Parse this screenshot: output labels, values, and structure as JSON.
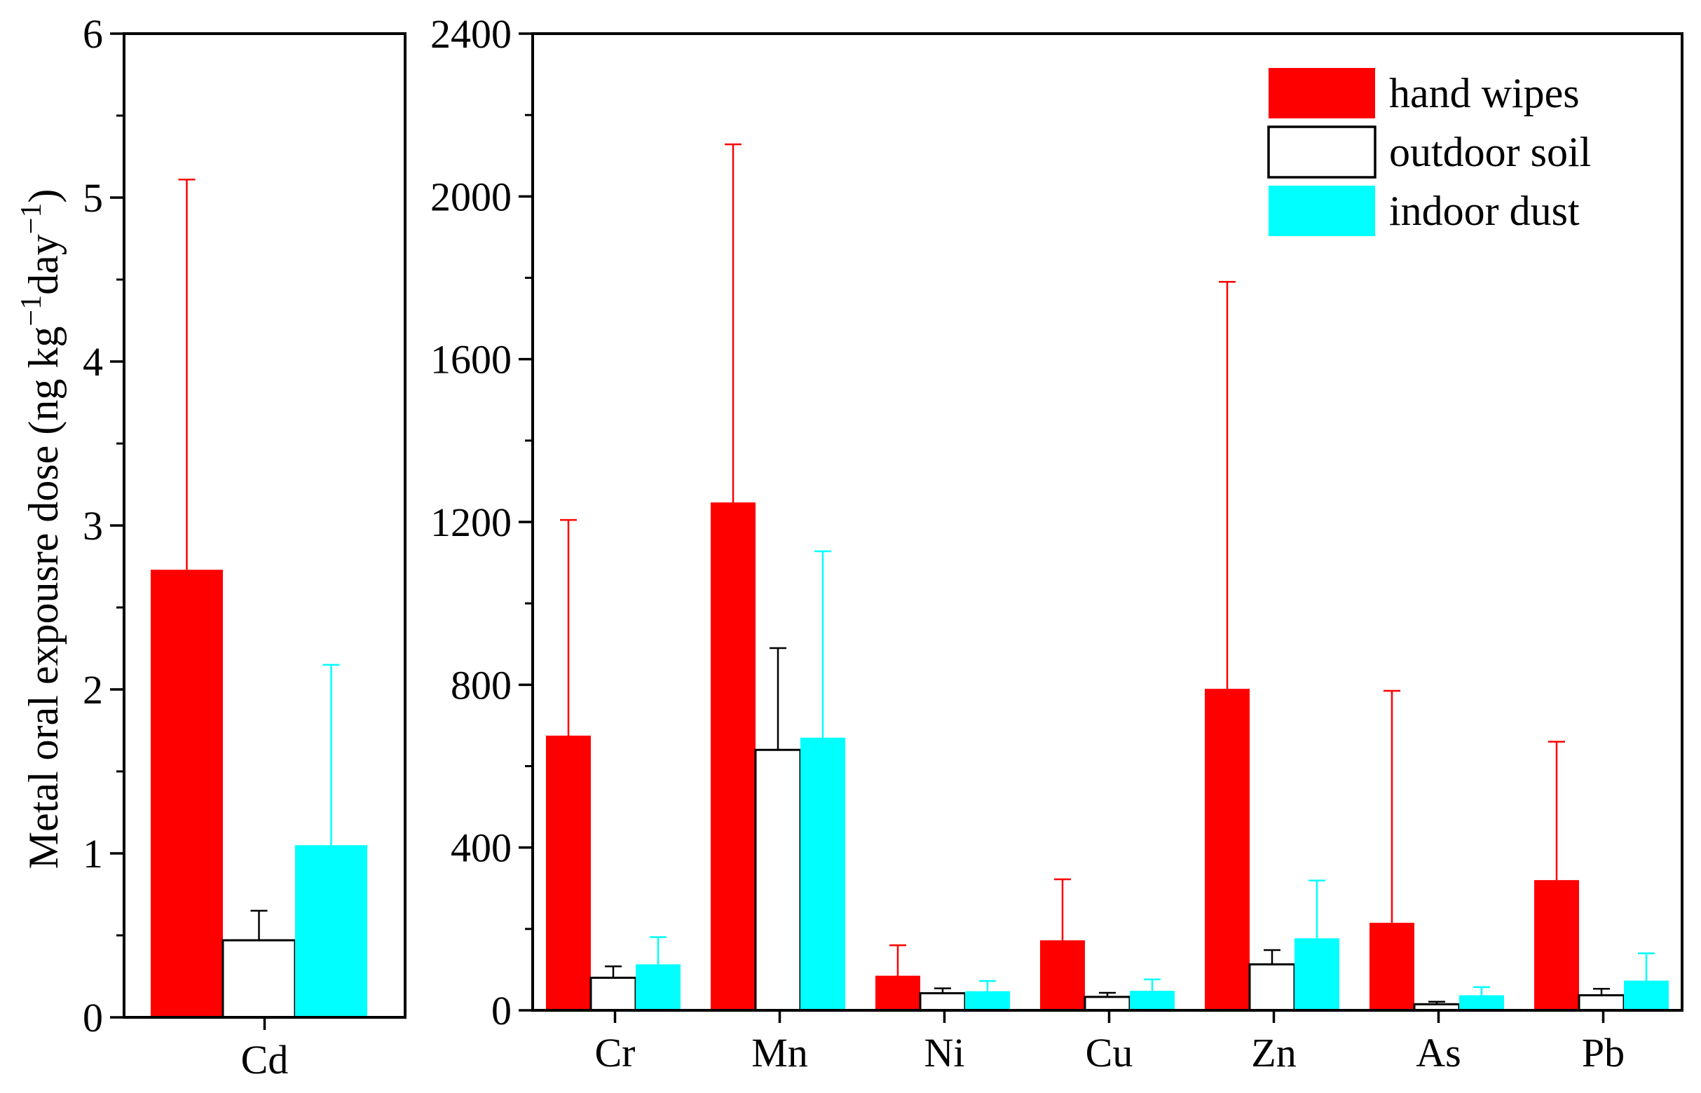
{
  "chart_data": [
    {
      "type": "bar",
      "panel": "left",
      "categories": [
        "Cd"
      ],
      "series": [
        {
          "name": "hand wipes",
          "values": [
            2.73
          ],
          "errors": [
            2.38
          ]
        },
        {
          "name": "outdoor soil",
          "values": [
            0.47
          ],
          "errors": [
            0.18
          ]
        },
        {
          "name": "indoor dust",
          "values": [
            1.05
          ],
          "errors": [
            1.1
          ]
        }
      ],
      "ylim": [
        0,
        6
      ],
      "yticks": [
        "0",
        "1",
        "2",
        "3",
        "4",
        "5",
        "6"
      ],
      "ylabel_parts": [
        "Metal oral expousre dose (ng kg",
        "−1",
        "day",
        "−1",
        ")"
      ]
    },
    {
      "type": "bar",
      "panel": "right",
      "categories": [
        "Cr",
        "Mn",
        "Ni",
        "Cu",
        "Zn",
        "As",
        "Pb"
      ],
      "series": [
        {
          "name": "hand wipes",
          "values": [
            675,
            1248,
            85,
            172,
            790,
            215,
            320
          ],
          "errors": [
            530,
            880,
            75,
            150,
            1000,
            570,
            340
          ]
        },
        {
          "name": "outdoor soil",
          "values": [
            80,
            640,
            42,
            33,
            113,
            15,
            37
          ],
          "errors": [
            28,
            250,
            12,
            10,
            35,
            6,
            16
          ]
        },
        {
          "name": "indoor dust",
          "values": [
            113,
            670,
            47,
            48,
            177,
            37,
            73
          ],
          "errors": [
            67,
            458,
            25,
            28,
            142,
            20,
            67
          ]
        }
      ],
      "ylim": [
        0,
        2400
      ],
      "yticks": [
        "0",
        "400",
        "800",
        "1200",
        "1600",
        "2000",
        "2400"
      ]
    }
  ],
  "legend": {
    "placement": "top-right",
    "items": [
      {
        "label": "hand wipes",
        "color": "#ff0000"
      },
      {
        "label": "outdoor soil",
        "color": "#ffffff"
      },
      {
        "label": "indoor dust",
        "color": "#00ffff"
      }
    ]
  },
  "colors": {
    "hand_wipes": "#ff0000",
    "outdoor_soil": "#ffffff",
    "indoor_dust": "#00ffff",
    "error_hand_wipes": "#ff0000",
    "error_outdoor_soil": "#000000",
    "error_indoor_dust": "#00ffff"
  }
}
